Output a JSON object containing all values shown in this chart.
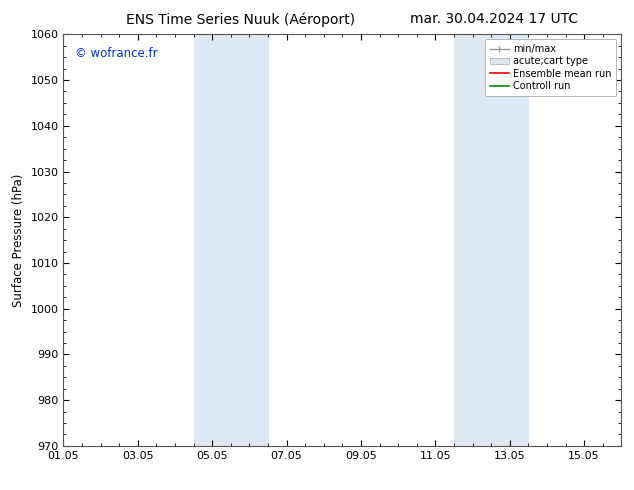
{
  "title_left": "ENS Time Series Nuuk (Aéroport)",
  "title_right": "mar. 30.04.2024 17 UTC",
  "ylabel": "Surface Pressure (hPa)",
  "ylim": [
    970,
    1060
  ],
  "yticks": [
    970,
    980,
    990,
    1000,
    1010,
    1020,
    1030,
    1040,
    1050,
    1060
  ],
  "xtick_labels": [
    "01.05",
    "03.05",
    "05.05",
    "07.05",
    "09.05",
    "11.05",
    "13.05",
    "15.05"
  ],
  "xtick_positions": [
    0,
    2,
    4,
    6,
    8,
    10,
    12,
    14
  ],
  "xlim": [
    0,
    15
  ],
  "shaded_bands": [
    {
      "x_start": 3.5,
      "x_end": 5.5,
      "color": "#dce9f5"
    },
    {
      "x_start": 10.5,
      "x_end": 12.5,
      "color": "#dce9f5"
    }
  ],
  "watermark_text": "© wofrance.fr",
  "watermark_color": "#0033cc",
  "legend_labels": [
    "min/max",
    "acute;cart type",
    "Ensemble mean run",
    "Controll run"
  ],
  "legend_colors": [
    "#aaaaaa",
    "#dce9f5",
    "#ff0000",
    "#008800"
  ],
  "bg_color": "#ffffff",
  "plot_bg_color": "#ffffff",
  "grid_color": "#cccccc",
  "title_fontsize": 10,
  "label_fontsize": 8.5,
  "tick_fontsize": 8
}
